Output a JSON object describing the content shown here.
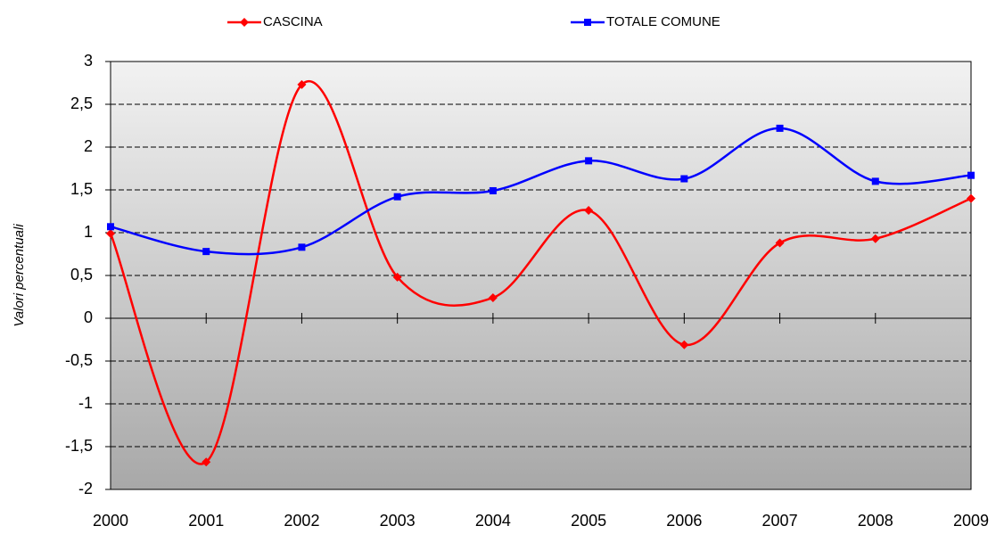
{
  "chart_data": {
    "type": "line",
    "y_label": "Valori percentuali",
    "categories": [
      "2000",
      "2001",
      "2002",
      "2003",
      "2004",
      "2005",
      "2006",
      "2007",
      "2008",
      "2009"
    ],
    "series": [
      {
        "name": "CASCINA",
        "color": "#ff0000",
        "marker": "diamond",
        "values": [
          0.99,
          -1.68,
          2.73,
          0.48,
          0.24,
          1.26,
          -0.31,
          0.88,
          0.93,
          1.4
        ]
      },
      {
        "name": "TOTALE COMUNE",
        "color": "#0000ff",
        "marker": "square",
        "values": [
          1.07,
          0.78,
          0.83,
          1.42,
          1.49,
          1.84,
          1.63,
          2.22,
          1.6,
          1.67
        ]
      }
    ],
    "ylim": [
      -2,
      3
    ],
    "yticks": [
      -2,
      {
        "value": -1.5,
        "label": "-1,5"
      },
      -1,
      {
        "value": -0.5,
        "label": "-0,5"
      },
      0,
      {
        "value": 0.5,
        "label": "0,5"
      },
      1,
      {
        "value": 1.5,
        "label": "1,5"
      },
      2,
      {
        "value": 2.5,
        "label": "2,5"
      },
      3
    ],
    "grid": true,
    "smooth": true,
    "legend": "top"
  }
}
